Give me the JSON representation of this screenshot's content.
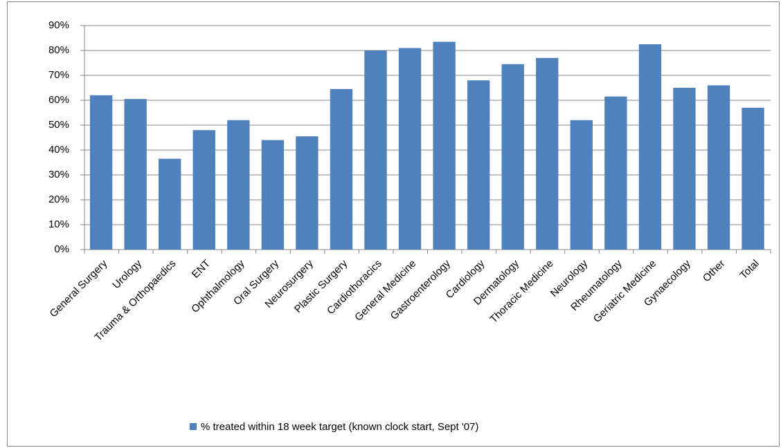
{
  "chart_data": {
    "type": "bar",
    "categories": [
      "General Surgery",
      "Urology",
      "Trauma & Orthopaedics",
      "ENT",
      "Ophthalmology",
      "Oral Surgery",
      "Neurosurgery",
      "Plastic Surgery",
      "Cardiothoracics",
      "General Medicine",
      "Gastroenterology",
      "Cardiology",
      "Dermatology",
      "Thoracic Medicine",
      "Neurology",
      "Rheumatology",
      "Geriatric Medicine",
      "Gynaecology",
      "Other",
      "Total"
    ],
    "series": [
      {
        "name": "% treated within 18 week target (known clock start, Sept '07)",
        "color": "#4f81bd",
        "values": [
          62,
          60.5,
          36.5,
          48,
          52,
          44,
          45.5,
          64.5,
          80,
          81,
          83.5,
          68,
          74.5,
          77,
          52,
          61.5,
          82.5,
          65,
          66,
          57
        ]
      }
    ],
    "ylim": [
      0,
      90
    ],
    "yticks": [
      {
        "value": 0,
        "label": "0%"
      },
      {
        "value": 10,
        "label": "10%"
      },
      {
        "value": 20,
        "label": "20%"
      },
      {
        "value": 30,
        "label": "30%"
      },
      {
        "value": 40,
        "label": "40%"
      },
      {
        "value": 50,
        "label": "50%"
      },
      {
        "value": 60,
        "label": "60%"
      },
      {
        "value": 70,
        "label": "70%"
      },
      {
        "value": 80,
        "label": "80%"
      },
      {
        "value": 90,
        "label": "90%"
      }
    ],
    "grid": true,
    "legend": "bottom"
  }
}
